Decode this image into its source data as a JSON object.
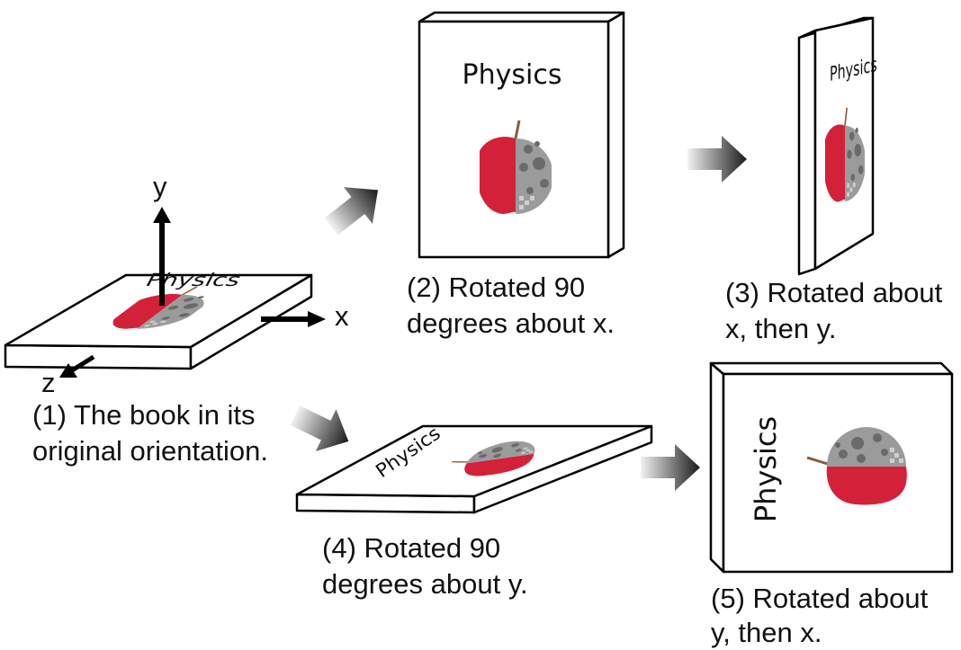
{
  "book": {
    "title": "Physics"
  },
  "axes": {
    "x": "x",
    "y": "y",
    "z": "z"
  },
  "captions": {
    "c1": [
      "(1) The book in its",
      "original orientation."
    ],
    "c2": [
      "(2) Rotated 90",
      "degrees about x."
    ],
    "c3": [
      "(3) Rotated about",
      "x, then y."
    ],
    "c4": [
      "(4) Rotated 90",
      "degrees about y."
    ],
    "c5": [
      "(5) Rotated about",
      "y, then x."
    ]
  },
  "colors": {
    "apple_red": "#d4213a",
    "moon_gray": "#9b9b9b",
    "crater_gray": "#6a6a6a",
    "stem_brown": "#8b5a3c",
    "arrow_dark": "#1a1a1a",
    "arrow_light": "#f2f2f2"
  }
}
